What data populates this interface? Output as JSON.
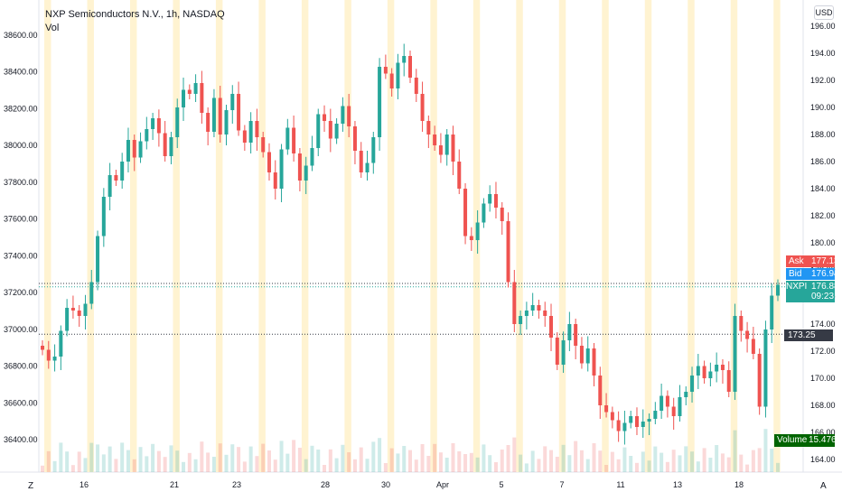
{
  "header": {
    "title": "NXP Semiconductors N.V., 1h, NASDAQ",
    "volume_label": "Vol",
    "currency": "USD"
  },
  "corner": {
    "left": "Z",
    "right": "A"
  },
  "colors": {
    "up": "#26a69a",
    "down": "#ef5350",
    "session_band": "#fff3d1",
    "ask": "#ef5350",
    "bid": "#2196f3",
    "last": "#26a69a",
    "marker": "#363a45",
    "volume_tag": "#006400"
  },
  "price_tags": {
    "ask_label": "Ask",
    "ask_value": "177.13",
    "bid_label": "Bid",
    "bid_value": "176.94",
    "last_label": "NXPI",
    "last_value": "176.88",
    "countdown": "09:23",
    "marker_value": "173.25",
    "volume_label": "Volume",
    "volume_value": "15.476K"
  },
  "chart_data": {
    "type": "candlestick",
    "title": "NXP Semiconductors N.V., 1h, NASDAQ",
    "left_axis": {
      "ticks": [
        "38600.00",
        "38400.00",
        "38200.00",
        "38000.00",
        "37800.00",
        "37600.00",
        "37400.00",
        "37200.00",
        "37000.00",
        "36800.00",
        "36600.00",
        "36400.00"
      ],
      "range": [
        36240,
        38700
      ]
    },
    "right_axis": {
      "ticks": [
        "196.00",
        "194.00",
        "192.00",
        "190.00",
        "188.00",
        "186.00",
        "184.00",
        "182.00",
        "180.00",
        "178.00",
        "176.00",
        "174.00",
        "172.00",
        "170.00",
        "168.00",
        "166.00",
        "164.00"
      ],
      "range": [
        163.5,
        197.2
      ]
    },
    "x_axis": {
      "ticks": [
        "16",
        "21",
        "23",
        "28",
        "30",
        "Apr",
        "5",
        "7",
        "11",
        "13",
        "18"
      ]
    },
    "close_series": [
      172.1,
      171.3,
      171.6,
      173.5,
      175.2,
      175.0,
      174.6,
      175.5,
      177.1,
      180.5,
      183.4,
      185.0,
      184.6,
      186.0,
      187.6,
      186.3,
      187.5,
      188.4,
      189.2,
      188.1,
      186.4,
      187.8,
      190.0,
      191.3,
      191.0,
      191.8,
      189.6,
      188.2,
      190.7,
      188.0,
      189.8,
      191.0,
      188.3,
      187.4,
      189.0,
      187.8,
      186.7,
      185.2,
      184.0,
      186.9,
      188.5,
      186.6,
      184.6,
      185.7,
      187.0,
      189.5,
      189.0,
      187.7,
      188.8,
      190.1,
      188.6,
      186.8,
      185.2,
      185.9,
      187.8,
      193.0,
      192.5,
      191.4,
      193.3,
      193.8,
      192.2,
      191.0,
      189.0,
      188.0,
      187.2,
      186.5,
      188.0,
      186.0,
      184.0,
      180.5,
      180.2,
      181.5,
      182.9,
      183.6,
      182.6,
      181.6,
      177.1,
      174.0,
      174.6,
      175.0,
      175.4,
      175.0,
      174.6,
      173.0,
      171.0,
      172.8,
      174.0,
      172.4,
      171.1,
      172.2,
      170.2,
      168.0,
      167.5,
      166.9,
      166.1,
      166.7,
      167.2,
      166.4,
      166.8,
      167.0,
      167.6,
      168.7,
      167.9,
      167.2,
      168.6,
      169.0,
      170.2,
      170.9,
      170.0,
      170.5,
      171.0,
      170.6,
      169.0,
      174.6,
      173.5,
      172.9,
      171.8,
      167.9,
      173.6,
      176.1,
      176.9
    ]
  }
}
